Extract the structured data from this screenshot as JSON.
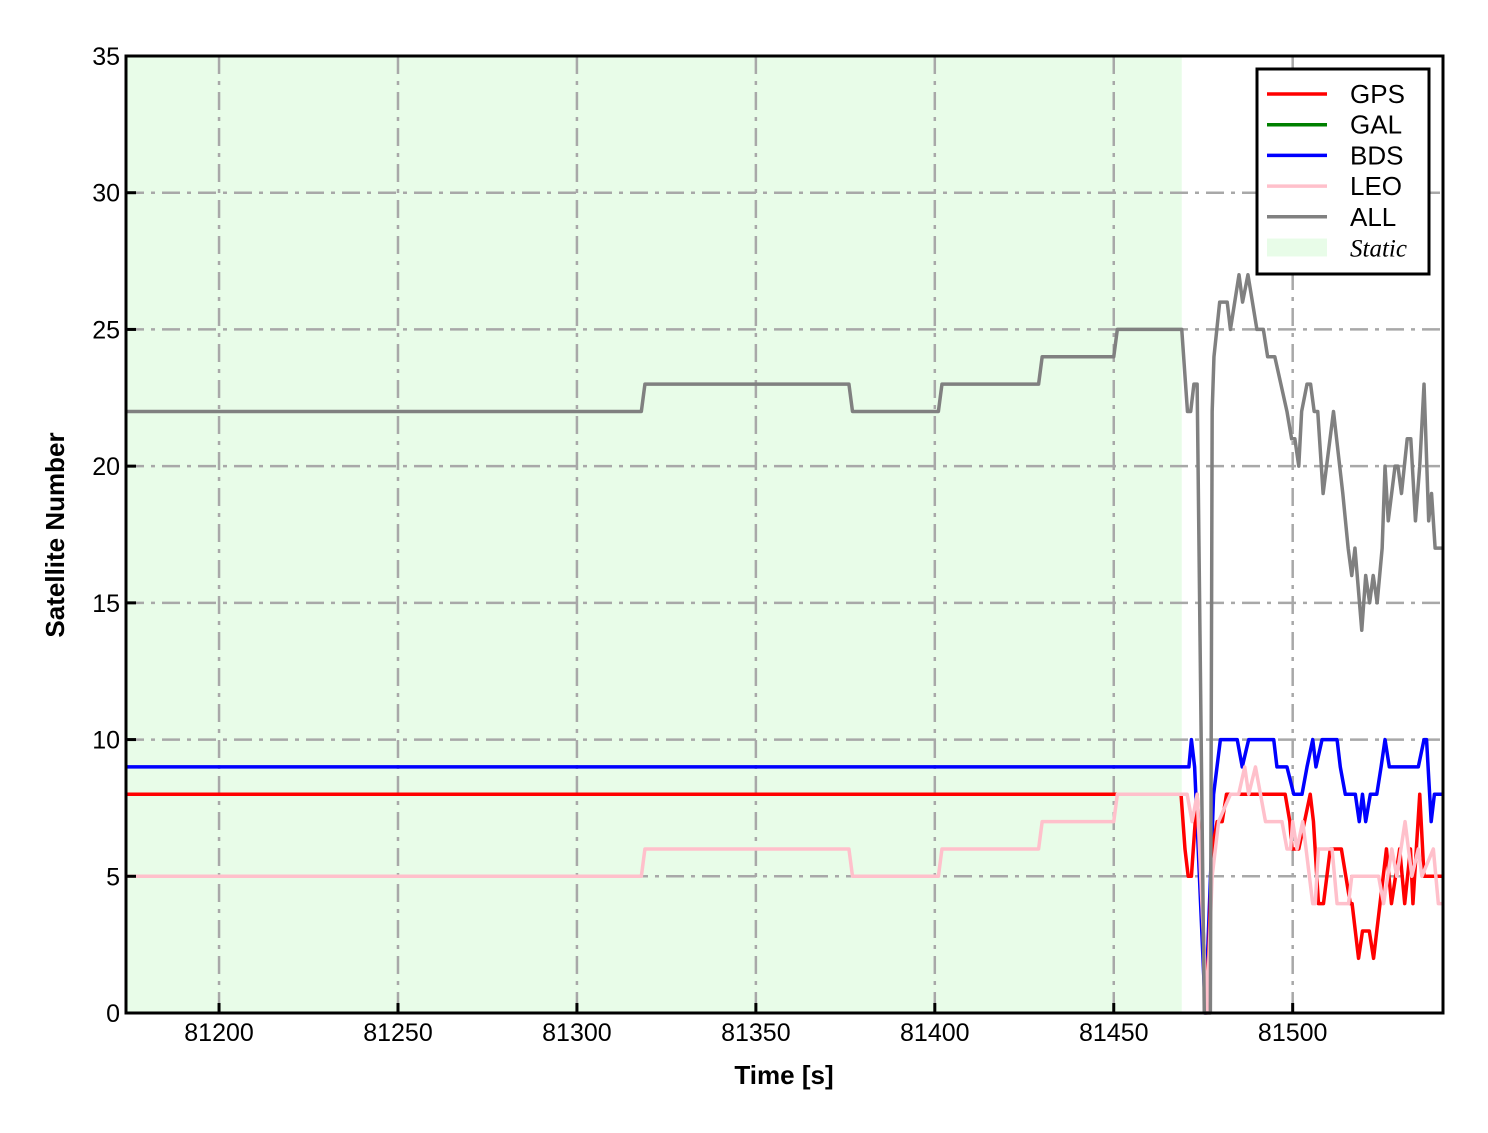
{
  "chart_data": {
    "type": "line",
    "title": "",
    "xlabel": "Time [s]",
    "ylabel": "Satellite Number",
    "xlim": [
      81174,
      81542
    ],
    "ylim": [
      0,
      35
    ],
    "xticks": [
      81200,
      81250,
      81300,
      81350,
      81400,
      81450,
      81500
    ],
    "yticks": [
      0,
      5,
      10,
      15,
      20,
      25,
      30,
      35
    ],
    "grid": true,
    "legend_position": "top-right",
    "shaded_regions": [
      {
        "name": "Static",
        "x_start": 81174,
        "x_end": 81469,
        "color": "#e8fce8"
      }
    ],
    "series": [
      {
        "name": "GPS",
        "color": "#ff0000",
        "points": [
          [
            81174,
            8
          ],
          [
            81468.8,
            8
          ],
          [
            81469.9,
            6
          ],
          [
            81470.8,
            5
          ],
          [
            81471.7,
            5
          ],
          [
            81473.3,
            8
          ],
          [
            81474,
            6
          ],
          [
            81476,
            0
          ],
          [
            81477.5,
            6
          ],
          [
            81478.9,
            7
          ],
          [
            81480.3,
            7
          ],
          [
            81481.5,
            8
          ],
          [
            81497.9,
            8
          ],
          [
            81499.2,
            7
          ],
          [
            81499.8,
            6
          ],
          [
            81501.7,
            6
          ],
          [
            81504.9,
            8
          ],
          [
            81505.8,
            7
          ],
          [
            81507.2,
            4
          ],
          [
            81508.6,
            4
          ],
          [
            81510.5,
            6
          ],
          [
            81513.6,
            6
          ],
          [
            81516.1,
            4
          ],
          [
            81516.6,
            4
          ],
          [
            81518.4,
            2
          ],
          [
            81519.5,
            3
          ],
          [
            81521.4,
            3
          ],
          [
            81522.6,
            2
          ],
          [
            81524.4,
            4
          ],
          [
            81526.2,
            6
          ],
          [
            81527.6,
            4
          ],
          [
            81529.9,
            6
          ],
          [
            81531.3,
            4
          ],
          [
            81532.9,
            6
          ],
          [
            81533.6,
            4
          ],
          [
            81535.5,
            8
          ],
          [
            81536.7,
            5
          ],
          [
            81541.6,
            5
          ]
        ]
      },
      {
        "name": "GAL",
        "color": "#008000",
        "points": []
      },
      {
        "name": "BDS",
        "color": "#0000ff",
        "points": [
          [
            81174,
            9
          ],
          [
            81471,
            9
          ],
          [
            81471.7,
            10
          ],
          [
            81472.6,
            9
          ],
          [
            81475.6,
            0
          ],
          [
            81477.9,
            8
          ],
          [
            81479.8,
            10
          ],
          [
            81484.5,
            10
          ],
          [
            81485.9,
            9
          ],
          [
            81487.7,
            10
          ],
          [
            81494.7,
            10
          ],
          [
            81495.6,
            9
          ],
          [
            81498.4,
            9
          ],
          [
            81500.3,
            8
          ],
          [
            81502.6,
            8
          ],
          [
            81504,
            9
          ],
          [
            81505.6,
            10
          ],
          [
            81506.5,
            9
          ],
          [
            81508.2,
            10
          ],
          [
            81512.4,
            10
          ],
          [
            81513.3,
            9
          ],
          [
            81514.7,
            8
          ],
          [
            81517.5,
            8
          ],
          [
            81518.6,
            7
          ],
          [
            81519.5,
            8
          ],
          [
            81520.4,
            7
          ],
          [
            81521.7,
            8
          ],
          [
            81523.5,
            8
          ],
          [
            81524.7,
            9
          ],
          [
            81525.8,
            10
          ],
          [
            81527,
            9
          ],
          [
            81535.1,
            9
          ],
          [
            81536.7,
            10
          ],
          [
            81537.4,
            10
          ],
          [
            81538.7,
            7
          ],
          [
            81539.6,
            8
          ],
          [
            81541.6,
            8
          ]
        ]
      },
      {
        "name": "LEO",
        "color": "#ffc0cb",
        "points": [
          [
            81174,
            5
          ],
          [
            81318,
            5
          ],
          [
            81319,
            6
          ],
          [
            81376,
            6
          ],
          [
            81377,
            5
          ],
          [
            81401,
            5
          ],
          [
            81402,
            6
          ],
          [
            81429,
            6
          ],
          [
            81430,
            7
          ],
          [
            81450,
            7
          ],
          [
            81451,
            8
          ],
          [
            81470.5,
            8
          ],
          [
            81471.9,
            7
          ],
          [
            81473.3,
            8
          ],
          [
            81476,
            0
          ],
          [
            81477.5,
            5
          ],
          [
            81479.3,
            7
          ],
          [
            81482.6,
            8
          ],
          [
            81484.9,
            8
          ],
          [
            81486.6,
            9
          ],
          [
            81487.7,
            8
          ],
          [
            81489.6,
            9
          ],
          [
            81492.4,
            7
          ],
          [
            81497,
            7
          ],
          [
            81498.4,
            6
          ],
          [
            81499.4,
            6
          ],
          [
            81500,
            7
          ],
          [
            81501.2,
            6
          ],
          [
            81502.8,
            7
          ],
          [
            81505.6,
            4
          ],
          [
            81506.3,
            4
          ],
          [
            81507.2,
            6
          ],
          [
            81511,
            6
          ],
          [
            81512.4,
            4
          ],
          [
            81515.6,
            4
          ],
          [
            81516.5,
            5
          ],
          [
            81524,
            5
          ],
          [
            81525.4,
            4
          ],
          [
            81527.7,
            6
          ],
          [
            81529.1,
            5
          ],
          [
            81531.4,
            7
          ],
          [
            81533.3,
            5
          ],
          [
            81535.1,
            6
          ],
          [
            81536.1,
            5
          ],
          [
            81539.3,
            6
          ],
          [
            81540.7,
            4
          ],
          [
            81541.6,
            4
          ]
        ]
      },
      {
        "name": "ALL",
        "color": "#808080",
        "points": [
          [
            81174,
            22
          ],
          [
            81318,
            22
          ],
          [
            81319,
            23
          ],
          [
            81376,
            23
          ],
          [
            81377,
            22
          ],
          [
            81401,
            22
          ],
          [
            81402,
            23
          ],
          [
            81429,
            23
          ],
          [
            81430,
            24
          ],
          [
            81450,
            24
          ],
          [
            81451,
            25
          ],
          [
            81469,
            25
          ],
          [
            81470.6,
            22
          ],
          [
            81471.5,
            22
          ],
          [
            81472.4,
            23
          ],
          [
            81473.3,
            23
          ],
          [
            81475.3,
            0
          ],
          [
            81477,
            0
          ],
          [
            81477.5,
            22
          ],
          [
            81478,
            24
          ],
          [
            81479.6,
            26
          ],
          [
            81481.7,
            26
          ],
          [
            81482.6,
            25
          ],
          [
            81485,
            27
          ],
          [
            81486,
            26
          ],
          [
            81487.5,
            27
          ],
          [
            81490,
            25
          ],
          [
            81491.8,
            25
          ],
          [
            81493,
            24
          ],
          [
            81495,
            24
          ],
          [
            81498.4,
            22
          ],
          [
            81499.7,
            21
          ],
          [
            81500.6,
            21
          ],
          [
            81501.7,
            20
          ],
          [
            81502.5,
            22
          ],
          [
            81504,
            23
          ],
          [
            81505,
            23
          ],
          [
            81506,
            22
          ],
          [
            81507,
            22
          ],
          [
            81508.5,
            19
          ],
          [
            81511.4,
            22
          ],
          [
            81514,
            19
          ],
          [
            81515.5,
            17
          ],
          [
            81516.5,
            16
          ],
          [
            81517.4,
            17
          ],
          [
            81519.3,
            14
          ],
          [
            81520.4,
            16
          ],
          [
            81521.5,
            15
          ],
          [
            81522.5,
            16
          ],
          [
            81523.6,
            15
          ],
          [
            81525,
            17
          ],
          [
            81525.8,
            20
          ],
          [
            81526.7,
            18
          ],
          [
            81528.6,
            20
          ],
          [
            81529.4,
            20
          ],
          [
            81530.4,
            19
          ],
          [
            81532,
            21
          ],
          [
            81533,
            21
          ],
          [
            81534.3,
            18
          ],
          [
            81535.5,
            20
          ],
          [
            81536.7,
            23
          ],
          [
            81538,
            18
          ],
          [
            81538.8,
            19
          ],
          [
            81539.8,
            17
          ],
          [
            81541.6,
            17
          ]
        ]
      }
    ]
  }
}
